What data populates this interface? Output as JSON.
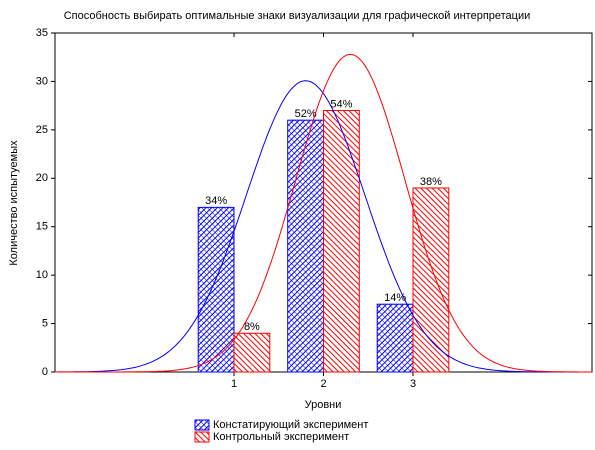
{
  "chart_data": {
    "type": "bar",
    "title": "Способность выбирать оптимальные знаки визуализации для графической интерпретации",
    "xlabel": "Уровни",
    "ylabel": "Количество испытуемых",
    "x": [
      1,
      2,
      3
    ],
    "xlim": [
      -1,
      5
    ],
    "xticks": [
      1,
      2,
      3
    ],
    "ylim": [
      0,
      35
    ],
    "yticks": [
      0,
      5,
      10,
      15,
      20,
      25,
      30,
      35
    ],
    "normal_fit": true,
    "hatched": true,
    "series": [
      {
        "name": "Констатирующий эксперимент",
        "color": "#0000ff",
        "values": [
          17,
          26,
          7
        ],
        "value_labels": [
          "34%",
          "52%",
          "14%"
        ]
      },
      {
        "name": "Контрольный эксперимент",
        "color": "#ff0000",
        "values": [
          4,
          27,
          19
        ],
        "value_labels": [
          "8%",
          "54%",
          "38%"
        ]
      }
    ]
  }
}
